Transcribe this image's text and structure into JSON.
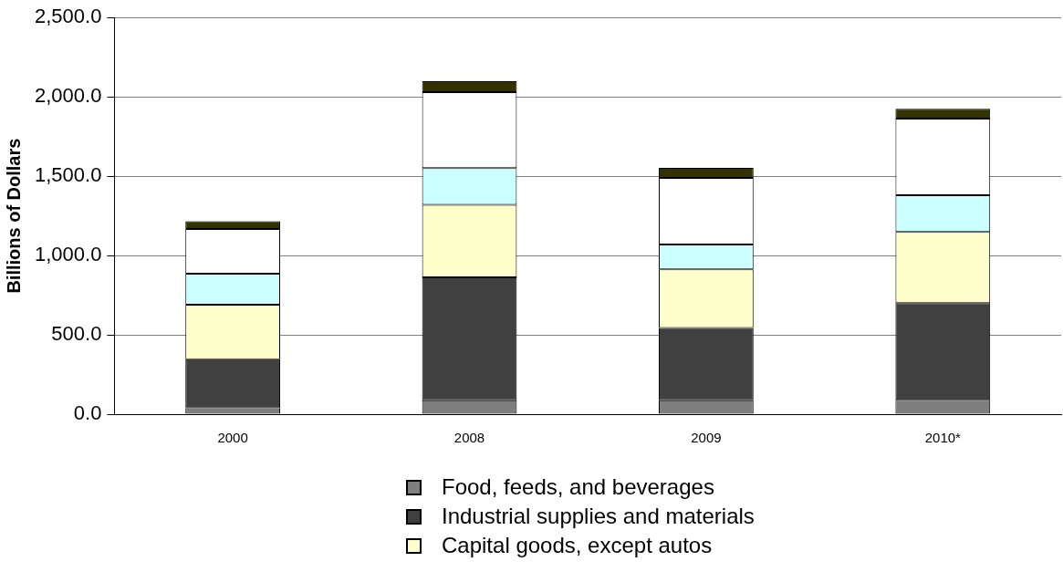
{
  "chart_data": {
    "type": "bar",
    "stacked": true,
    "ylabel": "Billions of Dollars",
    "categories": [
      "2000",
      "2008",
      "2009",
      "2010*"
    ],
    "series": [
      {
        "name": "Food, feeds, and beverages",
        "color": "#7f7f7f",
        "values": [
          37,
          87,
          87,
          90
        ]
      },
      {
        "name": "Industrial supplies and materials",
        "color": "#404040",
        "values": [
          309,
          776,
          456,
          610
        ]
      },
      {
        "name": "Capital goods, except autos",
        "color": "#ffffcc",
        "values": [
          344,
          456,
          370,
          448
        ]
      },
      {
        "color": "#ccffff",
        "values": [
          196,
          232,
          157,
          232
        ]
      },
      {
        "color": "#ffffff",
        "values": [
          281,
          478,
          419,
          483
        ]
      },
      {
        "color": "#333300",
        "values": [
          49,
          69,
          63,
          62
        ]
      }
    ],
    "ylim": [
      0,
      2500
    ],
    "yticks": [
      {
        "value": 0,
        "label": "0.0"
      },
      {
        "value": 500,
        "label": "500.0"
      },
      {
        "value": 1000,
        "label": "1,000.0"
      },
      {
        "value": 1500,
        "label": "1,500.0"
      },
      {
        "value": 2000,
        "label": "2,000.0"
      },
      {
        "value": 2500,
        "label": "2,500.0"
      }
    ],
    "grid": "y",
    "legend": "bottom"
  }
}
